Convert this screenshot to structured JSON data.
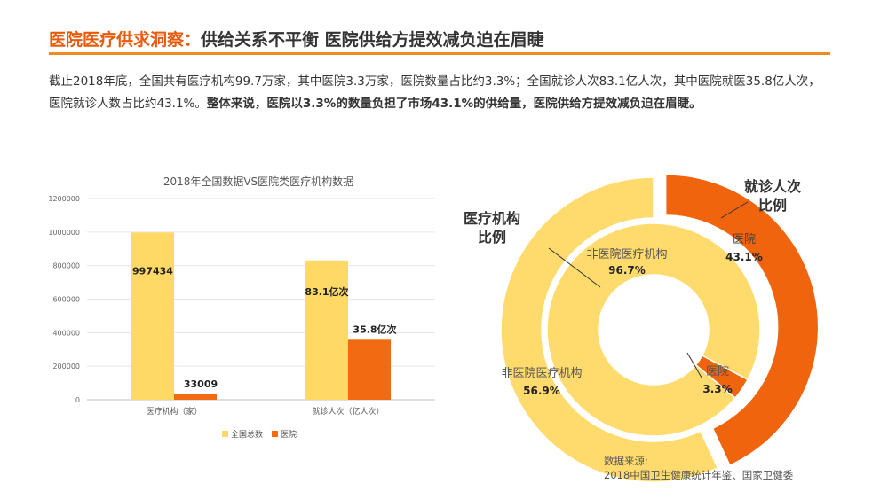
{
  "header": {
    "title_part1": "医院医疗供求洞察：",
    "title_part2": "供给关系不平衡 医院供给方提效减负迫在眉睫"
  },
  "intro": {
    "plain": "截止2018年底，全国共有医疗机构99.7万家，其中医院3.3万家，医院数量占比约3.3%；全国就诊人次83.1亿人次，其中医院就医35.8亿人次，医院就诊人数占比约43.1%。",
    "bold": "整体来说，医院以3.3%的数量负担了市场43.1%的供给量，医院供给方提效减负迫在眉睫。"
  },
  "colors": {
    "accent": "#ea5a0c",
    "yellow": "#ffd966",
    "orange": "#f26b12",
    "ring_orange": "#ef640c",
    "ring_yellow": "#ffdb6e"
  },
  "chart_data": [
    {
      "type": "bar",
      "title": "2018年全国数据VS医院类医疗机构数据",
      "categories": [
        "医疗机构（家）",
        "就诊人次（亿人次）"
      ],
      "y_ticks": [
        "0",
        "200000",
        "400000",
        "600000",
        "800000",
        "1000000",
        "1200000"
      ],
      "ylim": [
        0,
        1200000
      ],
      "series": [
        {
          "name": "全国总数",
          "values": [
            997434,
            831000
          ],
          "labels": [
            "997434",
            "83.1亿次"
          ]
        },
        {
          "name": "医院",
          "values": [
            33009,
            358000
          ],
          "labels": [
            "33009",
            "35.8亿次"
          ]
        }
      ],
      "legend_position": "bottom"
    },
    {
      "type": "pie",
      "subtype": "donut",
      "ring": "inner",
      "label": "医疗机构比例",
      "slices": [
        {
          "name": "非医院医疗机构",
          "value": 96.7,
          "label": "96.7%"
        },
        {
          "name": "医院",
          "value": 3.3,
          "label": "3.3%"
        }
      ]
    },
    {
      "type": "pie",
      "subtype": "donut",
      "ring": "outer",
      "label": "就诊人次比例",
      "slices": [
        {
          "name": "非医院医疗机构",
          "value": 56.9,
          "label": "56.9%"
        },
        {
          "name": "医院",
          "value": 43.1,
          "label": "43.1%"
        }
      ]
    }
  ],
  "ring_labels": {
    "inner": [
      "医疗机构",
      "比例"
    ],
    "outer": [
      "就诊人次",
      "比例"
    ]
  },
  "source": {
    "line1": "数据来源:",
    "line2": "2018中国卫生健康统计年鉴、国家卫健委"
  }
}
